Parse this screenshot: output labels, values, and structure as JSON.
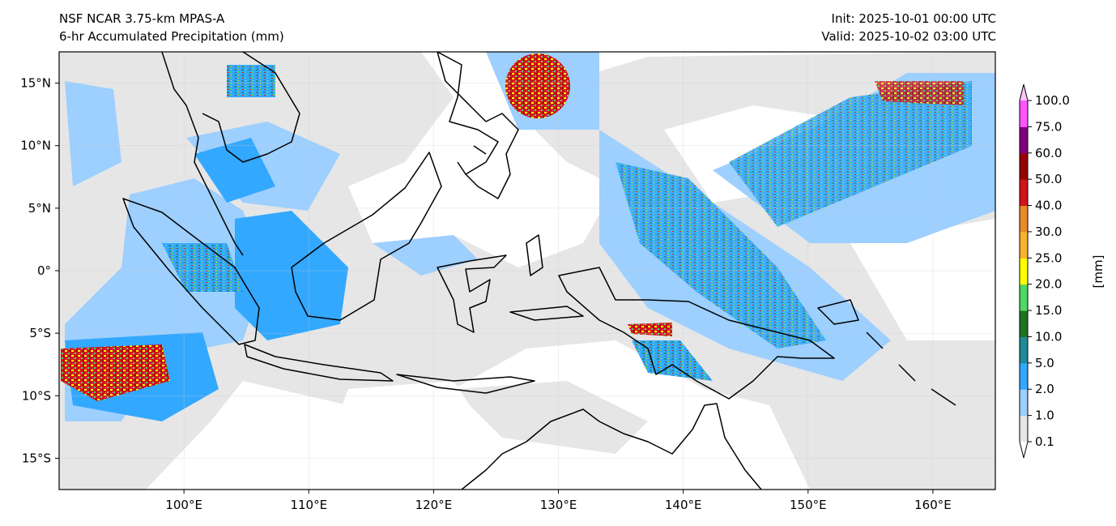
{
  "header": {
    "title_line1": "NSF NCAR 3.75-km MPAS-A",
    "title_line2": "6-hr Accumulated Precipitation (mm)",
    "init": "Init: 2025-10-01 00:00 UTC",
    "valid": "Valid: 2025-10-02 03:00 UTC"
  },
  "map": {
    "lon_range": [
      90,
      165
    ],
    "lat_range": [
      -17.5,
      17.5
    ],
    "lon_ticks": [
      {
        "v": 100,
        "label": "100°E"
      },
      {
        "v": 110,
        "label": "110°E"
      },
      {
        "v": 120,
        "label": "120°E"
      },
      {
        "v": 130,
        "label": "130°E"
      },
      {
        "v": 140,
        "label": "140°E"
      },
      {
        "v": 150,
        "label": "150°E"
      },
      {
        "v": 160,
        "label": "160°E"
      }
    ],
    "lat_ticks": [
      {
        "v": 15,
        "label": "15°N"
      },
      {
        "v": 10,
        "label": "10°N"
      },
      {
        "v": 5,
        "label": "5°N"
      },
      {
        "v": 0,
        "label": "0°"
      },
      {
        "v": -5,
        "label": "5°S"
      },
      {
        "v": -10,
        "label": "10°S"
      },
      {
        "v": -15,
        "label": "15°S"
      }
    ]
  },
  "colorbar": {
    "unit_label": "[mm]",
    "levels": [
      "0.1",
      "1.0",
      "2.0",
      "5.0",
      "10.0",
      "15.0",
      "20.0",
      "25.0",
      "30.0",
      "40.0",
      "50.0",
      "60.0",
      "75.0",
      "100.0"
    ],
    "colors": [
      "#e6e6e6",
      "#9dcfff",
      "#33a8ff",
      "#1f8b99",
      "#1e7321",
      "#4fd863",
      "#ffff00",
      "#f7b232",
      "#eb8a2a",
      "#d0151a",
      "#990000",
      "#800080",
      "#ff55ff"
    ],
    "under_color": "#ffffff",
    "over_color": "#ffc2ff"
  }
}
